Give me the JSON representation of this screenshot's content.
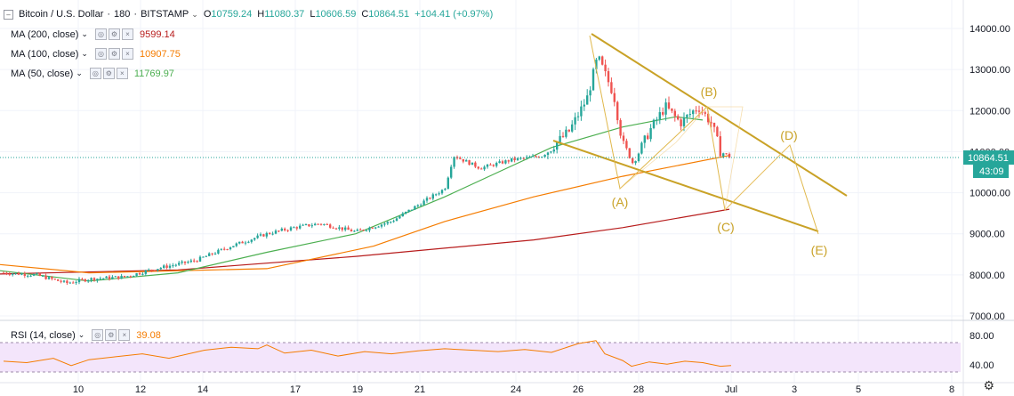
{
  "header": {
    "symbol": "Bitcoin / U.S. Dollar",
    "interval": "180",
    "exchange": "BITSTAMP",
    "open_label": "O",
    "open": "10759.24",
    "high_label": "H",
    "high": "11080.37",
    "low_label": "L",
    "low": "10606.59",
    "close_label": "C",
    "close": "10864.51",
    "change": "+104.41 (+0.97%)"
  },
  "indicators": [
    {
      "label": "MA (200, close)",
      "value": "9599.14",
      "color": "#b71c1c"
    },
    {
      "label": "MA (100, close)",
      "value": "10907.75",
      "color": "#f57c00"
    },
    {
      "label": "MA (50, close)",
      "value": "11769.97",
      "color": "#4caf50"
    }
  ],
  "rsi": {
    "label": "RSI (14, close)",
    "value": "39.08",
    "color": "#f57c00",
    "upper": 70,
    "lower": 30
  },
  "price_axis": {
    "ticks": [
      "14000.00",
      "13000.00",
      "12000.00",
      "11000.00",
      "10000.00",
      "9000.00",
      "8000.00",
      "7000.00"
    ],
    "current_price": "10864.51",
    "countdown": "43:09"
  },
  "rsi_axis": {
    "ticks": [
      "80.00",
      "40.00"
    ]
  },
  "time_axis": {
    "ticks": [
      "10",
      "12",
      "14",
      "17",
      "19",
      "21",
      "24",
      "26",
      "28",
      "Jul",
      "3",
      "5",
      "8"
    ]
  },
  "wave_labels": [
    "(A)",
    "(B)",
    "(C)",
    "(D)",
    "(E)"
  ],
  "colors": {
    "up": "#26a69a",
    "down": "#ef5350",
    "drawing": "#c9a227",
    "price_line": "#26a69a"
  },
  "icons": {
    "settings": "gear-icon"
  },
  "chart_data": {
    "type": "candlestick",
    "price_range": [
      6800,
      14500
    ],
    "rsi_range": [
      25,
      90
    ],
    "series": [
      {
        "name": "MA (200, close)",
        "values": [
          [
            0,
            8020
          ],
          [
            200,
            8120
          ],
          [
            400,
            8450
          ],
          [
            600,
            8850
          ],
          [
            700,
            9150
          ],
          [
            820,
            9599
          ]
        ]
      },
      {
        "name": "MA (100, close)",
        "values": [
          [
            0,
            8250
          ],
          [
            100,
            8050
          ],
          [
            300,
            8150
          ],
          [
            420,
            8700
          ],
          [
            500,
            9300
          ],
          [
            600,
            9900
          ],
          [
            700,
            10400
          ],
          [
            820,
            10907
          ]
        ]
      },
      {
        "name": "MA (50, close)",
        "values": [
          [
            0,
            8100
          ],
          [
            100,
            7850
          ],
          [
            200,
            8050
          ],
          [
            300,
            8550
          ],
          [
            400,
            9000
          ],
          [
            500,
            9900
          ],
          [
            560,
            10500
          ],
          [
            620,
            11100
          ],
          [
            700,
            11600
          ],
          [
            760,
            11850
          ],
          [
            790,
            11770
          ]
        ]
      }
    ],
    "rsi_values": [
      [
        4,
        45
      ],
      [
        30,
        43
      ],
      [
        60,
        49
      ],
      [
        80,
        39
      ],
      [
        100,
        47
      ],
      [
        130,
        51
      ],
      [
        160,
        55
      ],
      [
        190,
        49
      ],
      [
        230,
        60
      ],
      [
        260,
        64
      ],
      [
        290,
        62
      ],
      [
        300,
        67
      ],
      [
        320,
        56
      ],
      [
        350,
        60
      ],
      [
        380,
        52
      ],
      [
        410,
        58
      ],
      [
        440,
        55
      ],
      [
        470,
        59
      ],
      [
        500,
        62
      ],
      [
        530,
        60
      ],
      [
        560,
        58
      ],
      [
        590,
        61
      ],
      [
        620,
        57
      ],
      [
        650,
        69
      ],
      [
        670,
        73
      ],
      [
        680,
        55
      ],
      [
        700,
        46
      ],
      [
        710,
        38
      ],
      [
        730,
        44
      ],
      [
        750,
        41
      ],
      [
        770,
        45
      ],
      [
        790,
        43
      ],
      [
        810,
        38
      ],
      [
        822,
        39
      ]
    ]
  }
}
